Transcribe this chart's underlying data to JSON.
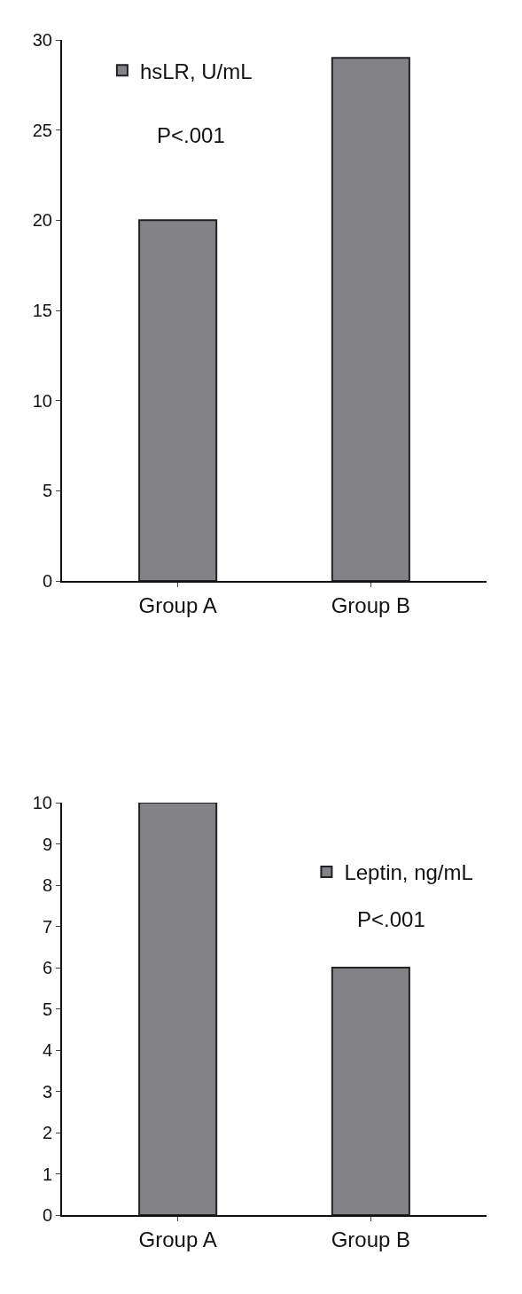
{
  "chart_data": [
    {
      "type": "bar",
      "categories": [
        "Group A",
        "Group B"
      ],
      "series": [
        {
          "name": "hsLR, U/mL",
          "color": "#838387",
          "values": [
            20,
            29
          ]
        }
      ],
      "ylim": [
        0,
        30
      ],
      "yticks": [
        0,
        5,
        10,
        15,
        20,
        25,
        30
      ],
      "grid": false,
      "legend": "top left",
      "annotations": [
        "P<.001"
      ]
    },
    {
      "type": "bar",
      "categories": [
        "Group A",
        "Group B"
      ],
      "series": [
        {
          "name": "Leptin, ng/mL",
          "color": "#838387",
          "values": [
            10,
            6
          ]
        }
      ],
      "ylim": [
        0,
        10
      ],
      "yticks": [
        0,
        1,
        2,
        3,
        4,
        5,
        6,
        7,
        8,
        9,
        10
      ],
      "grid": false,
      "legend": "top right",
      "annotations": [
        "P<.001"
      ]
    }
  ]
}
